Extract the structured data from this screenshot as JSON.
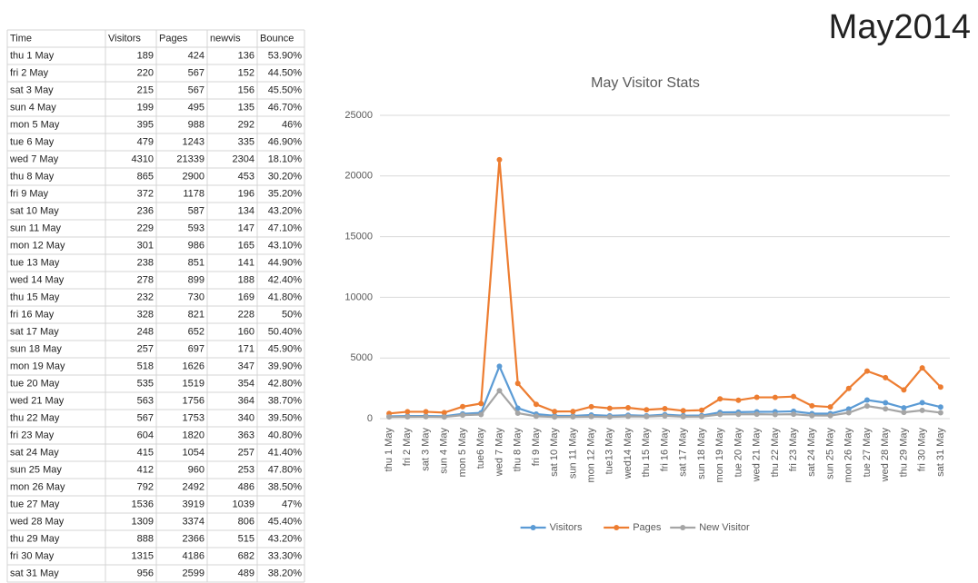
{
  "header": {
    "title": "May2014"
  },
  "table": {
    "columns": [
      "Time",
      "Visitors",
      "Pages",
      "newvis",
      "Bounce"
    ],
    "rows": [
      [
        "thu 1 May",
        189,
        424,
        136,
        "53.90%"
      ],
      [
        "fri 2 May",
        220,
        567,
        152,
        "44.50%"
      ],
      [
        "sat 3 May",
        215,
        567,
        156,
        "45.50%"
      ],
      [
        "sun 4 May",
        199,
        495,
        135,
        "46.70%"
      ],
      [
        "mon 5 May",
        395,
        988,
        292,
        "46%"
      ],
      [
        "tue 6 May",
        479,
        1243,
        335,
        "46.90%"
      ],
      [
        "wed 7 May",
        4310,
        21339,
        2304,
        "18.10%"
      ],
      [
        "thu 8 May",
        865,
        2900,
        453,
        "30.20%"
      ],
      [
        "fri 9 May",
        372,
        1178,
        196,
        "35.20%"
      ],
      [
        "sat 10 May",
        236,
        587,
        134,
        "43.20%"
      ],
      [
        "sun 11 May",
        229,
        593,
        147,
        "47.10%"
      ],
      [
        "mon 12 May",
        301,
        986,
        165,
        "43.10%"
      ],
      [
        "tue 13 May",
        238,
        851,
        141,
        "44.90%"
      ],
      [
        "wed 14 May",
        278,
        899,
        188,
        "42.40%"
      ],
      [
        "thu 15 May",
        232,
        730,
        169,
        "41.80%"
      ],
      [
        "fri 16 May",
        328,
        821,
        228,
        "50%"
      ],
      [
        "sat 17 May",
        248,
        652,
        160,
        "50.40%"
      ],
      [
        "sun 18 May",
        257,
        697,
        171,
        "45.90%"
      ],
      [
        "mon 19 May",
        518,
        1626,
        347,
        "39.90%"
      ],
      [
        "tue 20 May",
        535,
        1519,
        354,
        "42.80%"
      ],
      [
        "wed 21 May",
        563,
        1756,
        364,
        "38.70%"
      ],
      [
        "thu 22 May",
        567,
        1753,
        340,
        "39.50%"
      ],
      [
        "fri 23 May",
        604,
        1820,
        363,
        "40.80%"
      ],
      [
        "sat 24 May",
        415,
        1054,
        257,
        "41.40%"
      ],
      [
        "sun 25 May",
        412,
        960,
        253,
        "47.80%"
      ],
      [
        "mon 26 May",
        792,
        2492,
        486,
        "38.50%"
      ],
      [
        "tue 27 May",
        1536,
        3919,
        1039,
        "47%"
      ],
      [
        "wed 28 May",
        1309,
        3374,
        806,
        "45.40%"
      ],
      [
        "thu 29 May",
        888,
        2366,
        515,
        "43.20%"
      ],
      [
        "fri 30 May",
        1315,
        4186,
        682,
        "33.30%"
      ],
      [
        "sat 31 May",
        956,
        2599,
        489,
        "38.20%"
      ]
    ]
  },
  "chart_data": {
    "type": "line",
    "title": "May Visitor Stats",
    "categories": [
      "thu 1 May",
      "fri 2 May",
      "sat 3 May",
      "sun 4 May",
      "mon 5 May",
      "tue6 May",
      "wed 7 May",
      "thu 8 May",
      "fri 9 May",
      "sat 10 May",
      "sun 11 May",
      "mon 12 May",
      "tue13 May",
      "wed14 May",
      "thu 15 May",
      "fri 16 May",
      "sat 17 May",
      "sun 18 May",
      "mon 19 May",
      "tue 20 May",
      "wed 21 May",
      "thu 22 May",
      "fri 23 May",
      "sat 24 May",
      "sun 25 May",
      "mon 26 May",
      "tue 27 May",
      "wed 28 May",
      "thu 29 May",
      "fri 30 May",
      "sat 31 May"
    ],
    "series": [
      {
        "name": "Visitors",
        "color": "#5b9bd5",
        "values": [
          189,
          220,
          215,
          199,
          395,
          479,
          4310,
          865,
          372,
          236,
          229,
          301,
          238,
          278,
          232,
          328,
          248,
          257,
          518,
          535,
          563,
          567,
          604,
          415,
          412,
          792,
          1536,
          1309,
          888,
          1315,
          956
        ]
      },
      {
        "name": "Pages",
        "color": "#ed7d31",
        "values": [
          424,
          567,
          567,
          495,
          988,
          1243,
          21339,
          2900,
          1178,
          587,
          593,
          986,
          851,
          899,
          730,
          821,
          652,
          697,
          1626,
          1519,
          1756,
          1753,
          1820,
          1054,
          960,
          2492,
          3919,
          3374,
          2366,
          4186,
          2599
        ]
      },
      {
        "name": "New Visitor",
        "color": "#a5a5a5",
        "values": [
          136,
          152,
          156,
          135,
          292,
          335,
          2304,
          453,
          196,
          134,
          147,
          165,
          141,
          188,
          169,
          228,
          160,
          171,
          347,
          354,
          364,
          340,
          363,
          257,
          253,
          486,
          1039,
          806,
          515,
          682,
          489
        ]
      }
    ],
    "ylim": [
      0,
      25000
    ],
    "yticks": [
      0,
      5000,
      10000,
      15000,
      20000,
      25000
    ],
    "grid": true,
    "legend": "bottom"
  }
}
